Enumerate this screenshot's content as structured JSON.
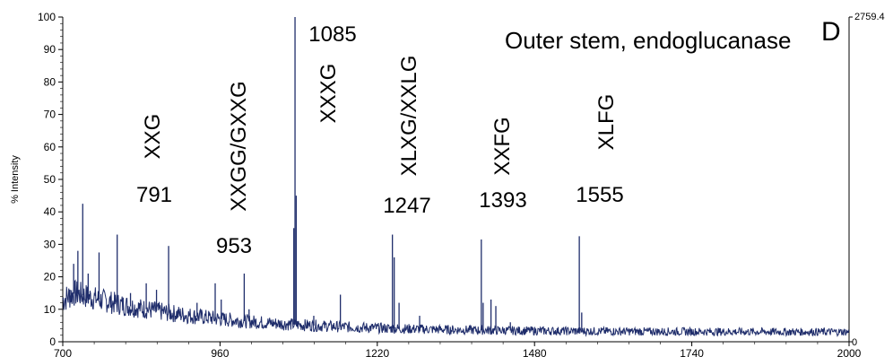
{
  "chart_data": {
    "type": "line",
    "title": "",
    "xlabel": "",
    "ylabel": "% Intensity",
    "xlim": [
      700,
      2000
    ],
    "ylim": [
      0,
      100
    ],
    "x_ticks": [
      700,
      960,
      1220,
      1480,
      1740,
      2000
    ],
    "y_ticks": [
      0,
      10,
      20,
      30,
      40,
      50,
      60,
      70,
      80,
      90,
      100
    ],
    "right_axis": {
      "top_label": "2759.4",
      "bottom_label": "0"
    },
    "panel_letter": "D",
    "annotation": "Outer stem, endoglucanase",
    "series_color": "#1f2d6b",
    "grid": false,
    "peaks": [
      {
        "x": 712,
        "y": 16
      },
      {
        "x": 718,
        "y": 24
      },
      {
        "x": 725,
        "y": 28
      },
      {
        "x": 733,
        "y": 42.5
      },
      {
        "x": 742,
        "y": 21
      },
      {
        "x": 760,
        "y": 27.5
      },
      {
        "x": 790,
        "y": 33
      },
      {
        "x": 812,
        "y": 15
      },
      {
        "x": 838,
        "y": 18
      },
      {
        "x": 855,
        "y": 16
      },
      {
        "x": 875,
        "y": 29.5
      },
      {
        "x": 922,
        "y": 12
      },
      {
        "x": 952,
        "y": 18
      },
      {
        "x": 962,
        "y": 13
      },
      {
        "x": 1000,
        "y": 21
      },
      {
        "x": 1008,
        "y": 10
      },
      {
        "x": 1084,
        "y": 100
      },
      {
        "x": 1086,
        "y": 45
      },
      {
        "x": 1082,
        "y": 35
      },
      {
        "x": 1115,
        "y": 8
      },
      {
        "x": 1159,
        "y": 14.5
      },
      {
        "x": 1245,
        "y": 33
      },
      {
        "x": 1248,
        "y": 26
      },
      {
        "x": 1256,
        "y": 12
      },
      {
        "x": 1290,
        "y": 8
      },
      {
        "x": 1392,
        "y": 31.5
      },
      {
        "x": 1395,
        "y": 12
      },
      {
        "x": 1408,
        "y": 13
      },
      {
        "x": 1416,
        "y": 11
      },
      {
        "x": 1440,
        "y": 6
      },
      {
        "x": 1554,
        "y": 32.5
      },
      {
        "x": 1558,
        "y": 9
      }
    ],
    "peak_labels": [
      {
        "mz": "791",
        "glycan": "XXG"
      },
      {
        "mz": "953",
        "glycan": "XXGG/GXXG"
      },
      {
        "mz": "1085",
        "glycan": "XXXG"
      },
      {
        "mz": "1247",
        "glycan": "XLXG/XXLG"
      },
      {
        "mz": "1393",
        "glycan": "XXFG"
      },
      {
        "mz": "1555",
        "glycan": "XLFG"
      }
    ]
  }
}
